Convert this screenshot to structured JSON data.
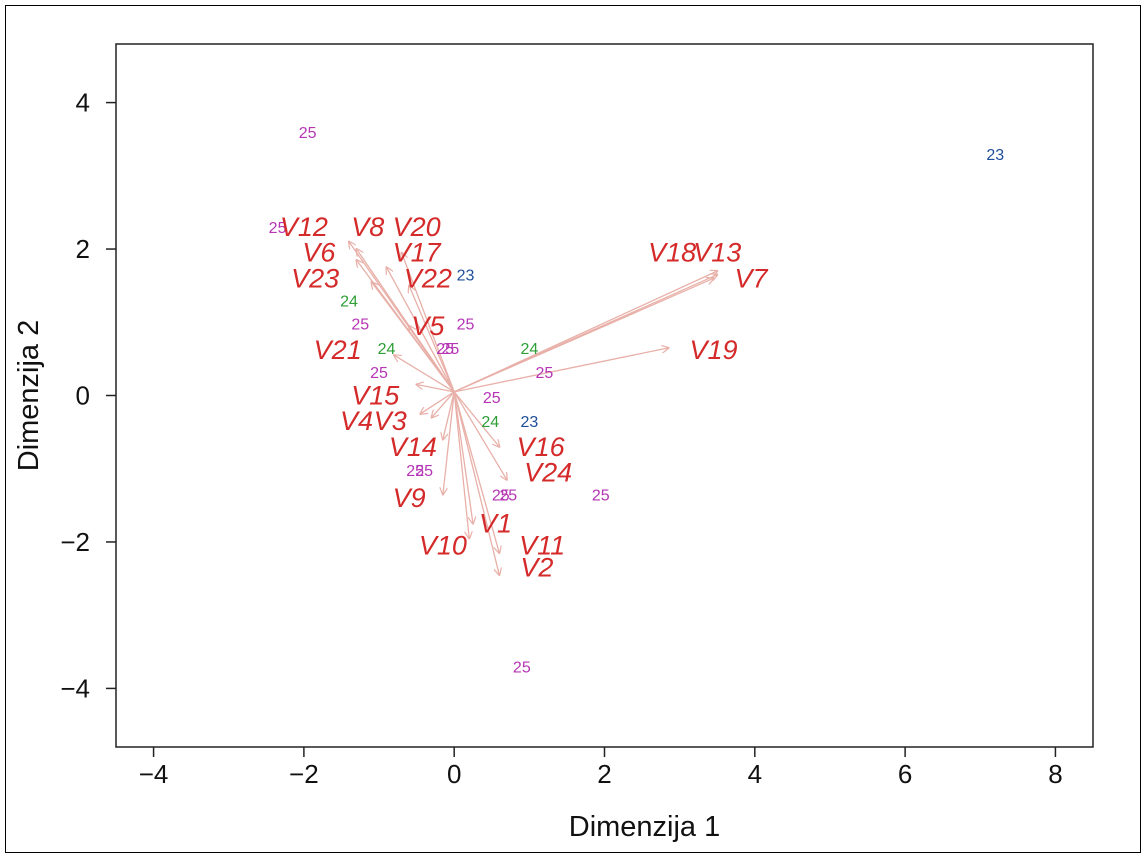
{
  "colors": {
    "variables": "#d42a2a",
    "arrows": "#e8b0a8",
    "group_23": "#1f4e9a",
    "group_24": "#2e9e36",
    "group_25": "#b535b5"
  },
  "chart_data": {
    "type": "scatter",
    "subtype": "biplot",
    "title": "",
    "xlabel": "Dimenzija 1",
    "ylabel": "Dimenzija 2",
    "xlim": [
      -4.5,
      8.5
    ],
    "ylim": [
      -4.8,
      4.8
    ],
    "xticks": [
      -4,
      -2,
      0,
      2,
      4,
      6,
      8
    ],
    "yticks": [
      -4,
      -2,
      0,
      2,
      4
    ],
    "xtick_labels": [
      "−4",
      "−2",
      "0",
      "2",
      "4",
      "6",
      "8"
    ],
    "ytick_labels": [
      "−4",
      "−2",
      "0",
      "2",
      "4"
    ],
    "grid": false,
    "variables": [
      {
        "label": "V12",
        "x": -2.0,
        "y": 2.3,
        "ax": -1.4,
        "ay": 2.1
      },
      {
        "label": "V8",
        "x": -1.15,
        "y": 2.3,
        "ax": -1.3,
        "ay": 2.0
      },
      {
        "label": "V20",
        "x": -0.5,
        "y": 2.3,
        "ax": -0.7,
        "ay": 1.95
      },
      {
        "label": "V6",
        "x": -1.8,
        "y": 1.95,
        "ax": -1.3,
        "ay": 1.85
      },
      {
        "label": "V17",
        "x": -0.5,
        "y": 1.95,
        "ax": -0.9,
        "ay": 1.75
      },
      {
        "label": "V23",
        "x": -1.85,
        "y": 1.6,
        "ax": -1.1,
        "ay": 1.55
      },
      {
        "label": "V22",
        "x": -0.35,
        "y": 1.6,
        "ax": -0.6,
        "ay": 1.5
      },
      {
        "label": "V18",
        "x": 2.9,
        "y": 1.95,
        "ax": 3.5,
        "ay": 1.65
      },
      {
        "label": "V13",
        "x": 3.5,
        "y": 1.95,
        "ax": 3.5,
        "ay": 1.7
      },
      {
        "label": "V7",
        "x": 3.95,
        "y": 1.6,
        "ax": 3.45,
        "ay": 1.6
      },
      {
        "label": "V5",
        "x": -0.35,
        "y": 0.95,
        "ax": -0.6,
        "ay": 0.95
      },
      {
        "label": "V21",
        "x": -1.55,
        "y": 0.62,
        "ax": -0.8,
        "ay": 0.55
      },
      {
        "label": "V19",
        "x": 3.45,
        "y": 0.62,
        "ax": 2.85,
        "ay": 0.65
      },
      {
        "label": "V15",
        "x": -1.05,
        "y": 0.0,
        "ax": -0.5,
        "ay": 0.15
      },
      {
        "label": "V4",
        "x": -1.3,
        "y": -0.35,
        "ax": -0.45,
        "ay": -0.25
      },
      {
        "label": "V3",
        "x": -0.85,
        "y": -0.35,
        "ax": -0.3,
        "ay": -0.3
      },
      {
        "label": "V14",
        "x": -0.55,
        "y": -0.7,
        "ax": -0.15,
        "ay": -0.6
      },
      {
        "label": "V16",
        "x": 1.15,
        "y": -0.7,
        "ax": 0.6,
        "ay": -0.7
      },
      {
        "label": "V24",
        "x": 1.25,
        "y": -1.05,
        "ax": 0.7,
        "ay": -1.15
      },
      {
        "label": "V9",
        "x": -0.6,
        "y": -1.4,
        "ax": -0.15,
        "ay": -1.35
      },
      {
        "label": "V1",
        "x": 0.55,
        "y": -1.75,
        "ax": 0.25,
        "ay": -1.75
      },
      {
        "label": "V10",
        "x": -0.15,
        "y": -2.05,
        "ax": 0.2,
        "ay": -1.95
      },
      {
        "label": "V11",
        "x": 1.17,
        "y": -2.05,
        "ax": 0.6,
        "ay": -2.15
      },
      {
        "label": "V2",
        "x": 1.1,
        "y": -2.35,
        "ax": 0.6,
        "ay": -2.45
      }
    ],
    "points": [
      {
        "label": "25",
        "x": -1.95,
        "y": 3.6,
        "group": "25"
      },
      {
        "label": "23",
        "x": 7.2,
        "y": 3.3,
        "group": "23"
      },
      {
        "label": "25",
        "x": -2.35,
        "y": 2.3,
        "group": "25"
      },
      {
        "label": "23",
        "x": 0.15,
        "y": 1.65,
        "group": "23"
      },
      {
        "label": "24",
        "x": -1.4,
        "y": 1.3,
        "group": "24"
      },
      {
        "label": "25",
        "x": -1.25,
        "y": 0.98,
        "group": "25"
      },
      {
        "label": "25",
        "x": 0.15,
        "y": 0.98,
        "group": "25"
      },
      {
        "label": "24",
        "x": -0.9,
        "y": 0.65,
        "group": "24"
      },
      {
        "label": "25",
        "x": -0.12,
        "y": 0.65,
        "group": "25"
      },
      {
        "label": "25",
        "x": -0.05,
        "y": 0.65,
        "group": "25"
      },
      {
        "label": "24",
        "x": 1.0,
        "y": 0.65,
        "group": "24"
      },
      {
        "label": "25",
        "x": 1.2,
        "y": 0.32,
        "group": "25"
      },
      {
        "label": "25",
        "x": -1.0,
        "y": 0.32,
        "group": "25"
      },
      {
        "label": "25",
        "x": 0.5,
        "y": -0.02,
        "group": "25"
      },
      {
        "label": "24",
        "x": 0.48,
        "y": -0.35,
        "group": "24"
      },
      {
        "label": "23",
        "x": 1.0,
        "y": -0.35,
        "group": "23"
      },
      {
        "label": "25",
        "x": -0.52,
        "y": -1.02,
        "group": "25"
      },
      {
        "label": "25",
        "x": -0.4,
        "y": -1.02,
        "group": "25"
      },
      {
        "label": "25",
        "x": 0.62,
        "y": -1.35,
        "group": "25"
      },
      {
        "label": "25",
        "x": 0.72,
        "y": -1.35,
        "group": "25"
      },
      {
        "label": "25",
        "x": 1.95,
        "y": -1.35,
        "group": "25"
      },
      {
        "label": "25",
        "x": 0.9,
        "y": -3.7,
        "group": "25"
      }
    ]
  }
}
